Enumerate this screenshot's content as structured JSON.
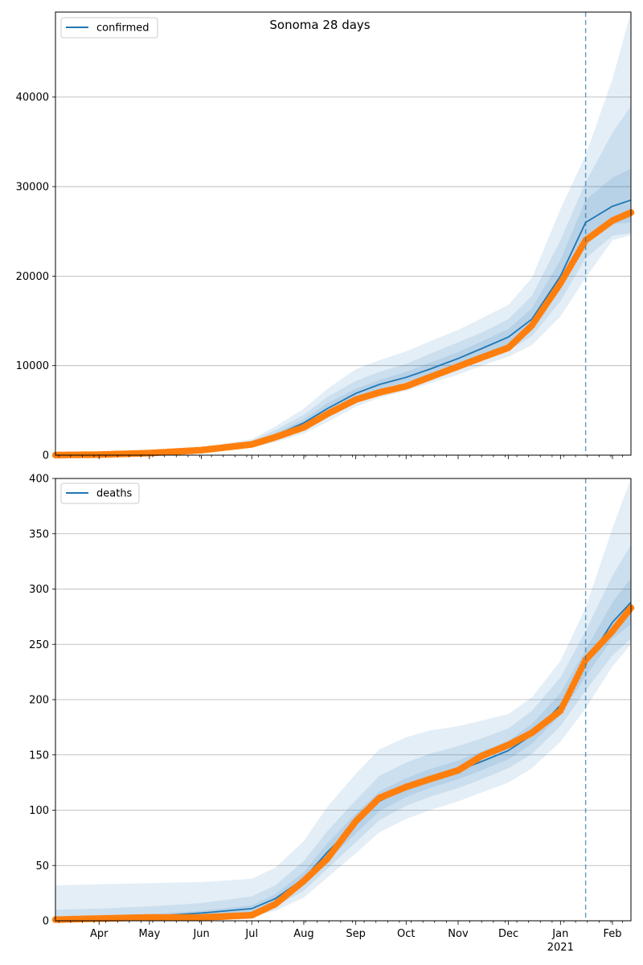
{
  "figure": {
    "title": "Sonoma 28 days"
  },
  "colors": {
    "line": "#1f77b4",
    "obs": "#ff7f0e",
    "band": "#1f77b4",
    "grid": "#b0b0b0"
  },
  "x_axis": {
    "month_labels": [
      {
        "date": "2020-04-01",
        "label": "Apr"
      },
      {
        "date": "2020-05-01",
        "label": "May"
      },
      {
        "date": "2020-06-01",
        "label": "Jun"
      },
      {
        "date": "2020-07-01",
        "label": "Jul"
      },
      {
        "date": "2020-08-01",
        "label": "Aug"
      },
      {
        "date": "2020-09-01",
        "label": "Sep"
      },
      {
        "date": "2020-10-01",
        "label": "Oct"
      },
      {
        "date": "2020-11-01",
        "label": "Nov"
      },
      {
        "date": "2020-12-01",
        "label": "Dec"
      },
      {
        "date": "2021-01-01",
        "label": "Jan"
      },
      {
        "date": "2021-02-01",
        "label": "Feb"
      }
    ],
    "year_label": "2021",
    "xlim": [
      "2020-03-06",
      "2021-02-12"
    ],
    "forecast_start": "2021-01-16"
  },
  "chart_data": [
    {
      "type": "line",
      "legend": "confirmed",
      "legend_position": "top-left",
      "ylim": [
        0,
        49500
      ],
      "yticks": [
        0,
        10000,
        20000,
        30000,
        40000
      ],
      "grid": true,
      "fitted": {
        "x": [
          "2020-03-06",
          "2020-04-01",
          "2020-05-01",
          "2020-06-01",
          "2020-07-01",
          "2020-07-15",
          "2020-08-01",
          "2020-08-15",
          "2020-09-01",
          "2020-09-15",
          "2020-10-01",
          "2020-10-15",
          "2020-11-01",
          "2020-11-15",
          "2020-12-01",
          "2020-12-15",
          "2021-01-01",
          "2021-01-16",
          "2021-02-01",
          "2021-02-12"
        ],
        "y": [
          0,
          50,
          250,
          600,
          1300,
          2200,
          3600,
          5200,
          6900,
          7900,
          8700,
          9600,
          10800,
          11900,
          13200,
          15200,
          20000,
          26000,
          27800,
          28500
        ]
      },
      "band_inner": {
        "lower": [
          0,
          40,
          220,
          540,
          1150,
          1950,
          3200,
          4700,
          6400,
          7400,
          8200,
          9000,
          10200,
          11200,
          12400,
          14200,
          18500,
          24000,
          25800,
          26000
        ],
        "upper": [
          0,
          60,
          280,
          660,
          1450,
          2450,
          4000,
          5800,
          7400,
          8400,
          9300,
          10300,
          11500,
          12700,
          14100,
          16400,
          21800,
          28500,
          31000,
          32000
        ]
      },
      "band_mid": {
        "lower": [
          0,
          30,
          190,
          480,
          1000,
          1700,
          2800,
          4200,
          5900,
          6900,
          7700,
          8500,
          9600,
          10600,
          11700,
          13300,
          17200,
          22000,
          24500,
          24800
        ],
        "upper": [
          0,
          70,
          320,
          730,
          1600,
          2800,
          4500,
          6500,
          8300,
          9300,
          10200,
          11300,
          12600,
          13700,
          15200,
          17800,
          24000,
          30500,
          36000,
          39000
        ]
      },
      "band_outer": {
        "lower": [
          0,
          20,
          160,
          420,
          850,
          1450,
          2400,
          3700,
          5400,
          6400,
          7200,
          8000,
          9000,
          10000,
          11000,
          12300,
          15500,
          19800,
          24000,
          24600
        ],
        "upper": [
          0,
          90,
          380,
          820,
          1800,
          3200,
          5200,
          7400,
          9600,
          10600,
          11600,
          12700,
          14000,
          15300,
          16800,
          19800,
          27500,
          33500,
          42000,
          49500
        ]
      },
      "observed": {
        "x": [
          "2020-03-06",
          "2020-04-01",
          "2020-05-01",
          "2020-06-01",
          "2020-07-01",
          "2020-07-15",
          "2020-08-01",
          "2020-08-15",
          "2020-09-01",
          "2020-09-15",
          "2020-10-01",
          "2020-10-15",
          "2020-11-01",
          "2020-11-15",
          "2020-12-01",
          "2020-12-15",
          "2021-01-01",
          "2021-01-16",
          "2021-02-01",
          "2021-02-12"
        ],
        "y": [
          10,
          60,
          230,
          560,
          1200,
          2000,
          3100,
          4600,
          6200,
          7000,
          7700,
          8700,
          9900,
          10900,
          12000,
          14500,
          19200,
          24000,
          26200,
          27100
        ]
      }
    },
    {
      "type": "line",
      "legend": "deaths",
      "legend_position": "top-left",
      "ylim": [
        0,
        400
      ],
      "yticks": [
        0,
        50,
        100,
        150,
        200,
        250,
        300,
        350,
        400
      ],
      "grid": true,
      "fitted": {
        "x": [
          "2020-03-06",
          "2020-04-01",
          "2020-05-01",
          "2020-06-01",
          "2020-07-01",
          "2020-07-15",
          "2020-08-01",
          "2020-08-15",
          "2020-09-01",
          "2020-09-15",
          "2020-10-01",
          "2020-10-15",
          "2020-11-01",
          "2020-11-15",
          "2020-12-01",
          "2020-12-15",
          "2021-01-01",
          "2021-01-16",
          "2021-02-01",
          "2021-02-12"
        ],
        "y": [
          1,
          2,
          4,
          7,
          11,
          20,
          38,
          62,
          88,
          108,
          120,
          128,
          136,
          144,
          154,
          168,
          195,
          232,
          270,
          288
        ]
      },
      "band_inner": {
        "lower": [
          0,
          1,
          3,
          5,
          8,
          16,
          32,
          54,
          79,
          99,
          112,
          120,
          128,
          136,
          146,
          160,
          186,
          221,
          255,
          268
        ],
        "upper": [
          3,
          4,
          6,
          9,
          14,
          24,
          44,
          70,
          97,
          117,
          129,
          137,
          145,
          153,
          163,
          178,
          206,
          245,
          288,
          310
        ]
      },
      "band_mid": {
        "lower": [
          0,
          1,
          2,
          3,
          6,
          13,
          27,
          47,
          71,
          91,
          104,
          112,
          120,
          128,
          138,
          151,
          176,
          208,
          240,
          255
        ],
        "upper": [
          10,
          11,
          13,
          16,
          22,
          32,
          54,
          81,
          109,
          131,
          143,
          151,
          158,
          165,
          174,
          190,
          220,
          262,
          312,
          340
        ]
      },
      "band_outer": {
        "lower": [
          0,
          0,
          1,
          2,
          4,
          9,
          21,
          39,
          61,
          80,
          92,
          100,
          108,
          116,
          125,
          138,
          162,
          192,
          230,
          250
        ],
        "upper": [
          32,
          33,
          34,
          35,
          38,
          48,
          72,
          103,
          133,
          155,
          166,
          172,
          176,
          181,
          187,
          202,
          235,
          283,
          355,
          400
        ]
      },
      "observed": {
        "x": [
          "2020-03-06",
          "2020-04-01",
          "2020-05-01",
          "2020-06-01",
          "2020-07-01",
          "2020-07-15",
          "2020-08-01",
          "2020-08-15",
          "2020-09-01",
          "2020-09-15",
          "2020-10-01",
          "2020-10-15",
          "2020-11-01",
          "2020-11-15",
          "2020-12-01",
          "2020-12-15",
          "2021-01-01",
          "2021-01-16",
          "2021-02-01",
          "2021-02-12"
        ],
        "y": [
          1,
          2,
          3,
          3,
          5,
          15,
          36,
          56,
          90,
          111,
          121,
          128,
          136,
          149,
          159,
          170,
          190,
          236,
          262,
          283
        ]
      }
    }
  ]
}
